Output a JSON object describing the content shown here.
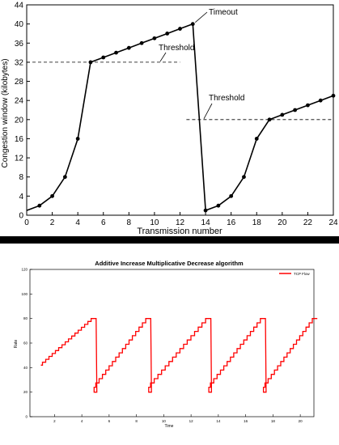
{
  "chart_data": [
    {
      "type": "line",
      "title": "",
      "xlabel": "Transmission number",
      "ylabel": "Congestion window (kilobytes)",
      "xlim": [
        0,
        24
      ],
      "ylim": [
        0,
        44
      ],
      "x_ticks": [
        0,
        2,
        4,
        6,
        8,
        10,
        12,
        14,
        16,
        18,
        20,
        22,
        24
      ],
      "y_ticks": [
        0,
        4,
        8,
        12,
        16,
        20,
        24,
        28,
        32,
        36,
        40,
        44
      ],
      "grid": false,
      "series": [
        {
          "name": "",
          "points": [
            [
              0,
              1
            ],
            [
              1,
              2
            ],
            [
              2,
              4
            ],
            [
              3,
              8
            ],
            [
              4,
              16
            ],
            [
              5,
              32
            ],
            [
              6,
              33
            ],
            [
              7,
              34
            ],
            [
              8,
              35
            ],
            [
              9,
              36
            ],
            [
              10,
              37
            ],
            [
              11,
              38
            ],
            [
              12,
              39
            ],
            [
              13,
              40
            ],
            [
              14,
              1
            ],
            [
              15,
              2
            ],
            [
              16,
              4
            ],
            [
              17,
              8
            ],
            [
              18,
              16
            ],
            [
              19,
              20
            ],
            [
              20,
              21
            ],
            [
              21,
              22
            ],
            [
              22,
              23
            ],
            [
              23,
              24
            ],
            [
              24,
              25
            ]
          ]
        }
      ],
      "thresholds": [
        {
          "label": "Threshold",
          "y": 32,
          "x_from": 0,
          "x_to": 12
        },
        {
          "label": "Threshold",
          "y": 20,
          "x_from": 12.5,
          "x_to": 24
        }
      ],
      "annotations": [
        {
          "label": "Timeout",
          "x": 13,
          "y": 40
        }
      ]
    },
    {
      "type": "line",
      "title": "Additive Increase Multiplicative Decrease algorithm",
      "xlabel": "Time",
      "ylabel": "Rate",
      "legend": "top-right",
      "legend_entries": [
        "TCP Flow"
      ],
      "line_color": "#ff0000",
      "x_ticks": [
        "2",
        "4",
        "6",
        "8",
        "10",
        "12",
        "14",
        "16",
        "18",
        "20"
      ],
      "y_ticks": [
        "120",
        "100",
        "80",
        "60",
        "40",
        "20",
        "0"
      ],
      "grid": false,
      "note_values": "sawtooth read approximately; y rises stepwise from ~42 to ~80 then drops to ~20",
      "series": [
        {
          "name": "TCP Flow",
          "cycles": [
            {
              "start_x": 1.0,
              "peak_x": 4.8
            },
            {
              "start_x": 4.9,
              "peak_x": 8.8
            },
            {
              "start_x": 8.9,
              "peak_x": 13.2
            },
            {
              "start_x": 13.3,
              "peak_x": 17.2
            },
            {
              "start_x": 17.3,
              "peak_x": 21.0
            }
          ],
          "low_y": 20,
          "start_y": 42,
          "peak_y": 80
        }
      ]
    }
  ]
}
